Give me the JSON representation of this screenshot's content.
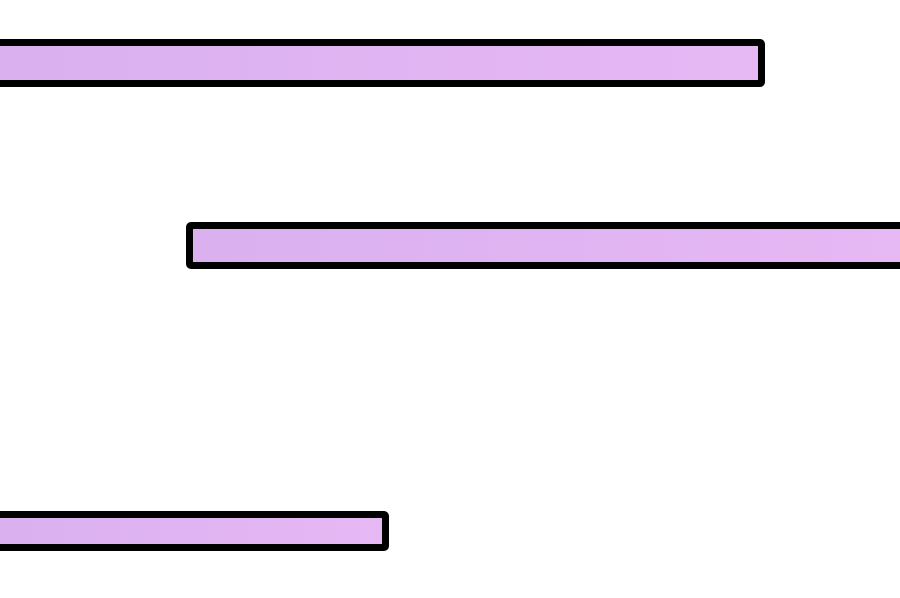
{
  "scene": {
    "background_color": "#ffffff",
    "platform_fill": "#dcb0f0",
    "platform_outline": "#000000",
    "platforms": [
      {
        "name": "top-platform"
      },
      {
        "name": "middle-platform"
      },
      {
        "name": "bottom-platform"
      }
    ]
  }
}
